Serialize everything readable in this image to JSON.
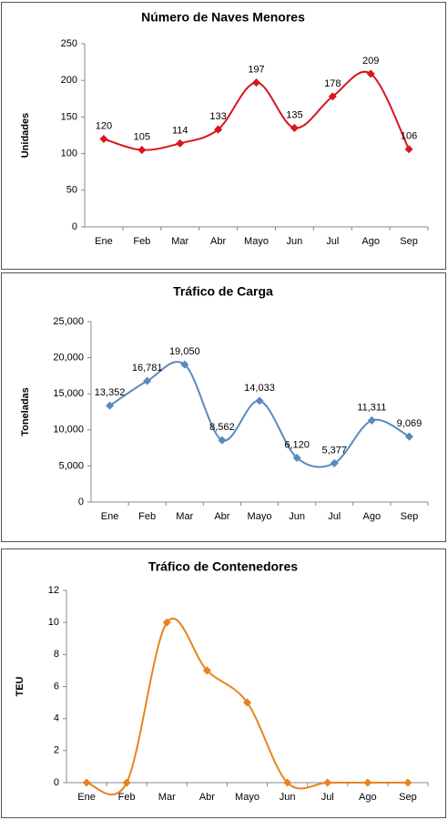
{
  "chart_data": [
    {
      "type": "line",
      "title": "Número de Naves Menores",
      "y_label": "Unidades",
      "categories": [
        "Ene",
        "Feb",
        "Mar",
        "Abr",
        "Mayo",
        "Jun",
        "Jul",
        "Ago",
        "Sep"
      ],
      "series": [
        {
          "name": "Unidades",
          "color": "#d7151d",
          "values": [
            120,
            105,
            114,
            133,
            197,
            135,
            178,
            209,
            106
          ]
        }
      ],
      "ylim": [
        0,
        250
      ],
      "yticks": [
        0,
        50,
        100,
        150,
        200,
        250
      ],
      "grid": false,
      "smooth": true
    },
    {
      "type": "line",
      "title": "Tráfico de Carga",
      "y_label": "Toneladas",
      "categories": [
        "Ene",
        "Feb",
        "Mar",
        "Abr",
        "Mayo",
        "Jun",
        "Jul",
        "Ago",
        "Sep"
      ],
      "series": [
        {
          "name": "Toneladas",
          "color": "#5a88c0",
          "values": [
            13352,
            16781,
            19050,
            8562,
            14033,
            6120,
            5377,
            11311,
            9069
          ],
          "value_labels": [
            "13,352",
            "16,781",
            "19,050",
            "8,562",
            "14,033",
            "6,120",
            "5,377",
            "11,311",
            "9,069"
          ]
        }
      ],
      "ylim": [
        0,
        25000
      ],
      "yticks": [
        0,
        {
          "value": 5000,
          "label": "5,000"
        },
        {
          "value": 10000,
          "label": "10,000"
        },
        {
          "value": 15000,
          "label": "15,000"
        },
        {
          "value": 20000,
          "label": "20,000"
        },
        {
          "value": 25000,
          "label": "25,000"
        }
      ],
      "grid": false,
      "smooth": true
    },
    {
      "type": "line",
      "title": "Tráfico de Contenedores",
      "y_label": "TEU",
      "categories": [
        "Ene",
        "Feb",
        "Mar",
        "Abr",
        "Mayo",
        "Jun",
        "Jul",
        "Ago",
        "Sep"
      ],
      "series": [
        {
          "name": "TEU",
          "color": "#e8831f",
          "values": [
            0,
            0,
            10,
            7,
            5,
            0,
            0,
            0,
            0
          ]
        }
      ],
      "ylim": [
        0,
        12
      ],
      "yticks": [
        0,
        2,
        4,
        6,
        8,
        10,
        12
      ],
      "grid": false,
      "smooth": true
    }
  ]
}
